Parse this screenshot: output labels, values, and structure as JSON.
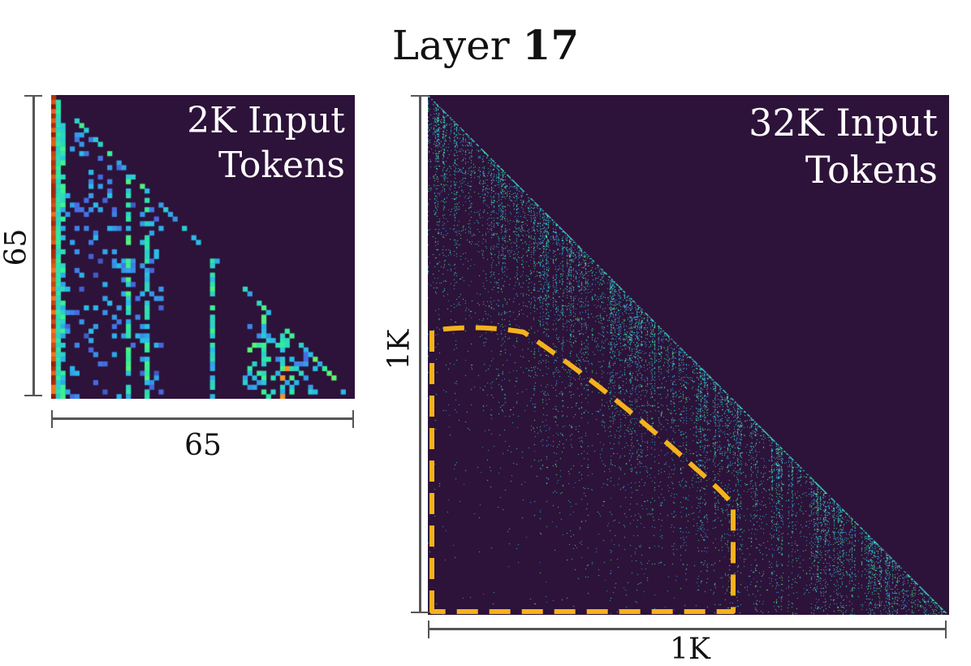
{
  "title": {
    "prefix": "Layer ",
    "number": "17"
  },
  "chart_data": [
    {
      "type": "heatmap",
      "label_line1": "2K Input",
      "label_line2": "Tokens",
      "x_label": "65",
      "y_label": "65",
      "size": 65,
      "mask": "lower-triangular",
      "colormap": "turbo",
      "background_color": "#2d1239",
      "features": {
        "strong_first_column": true,
        "bright_columns": [
          2,
          16,
          20,
          34,
          45,
          49
        ],
        "hot_cells": [
          [
            64,
            49
          ],
          [
            60,
            49
          ],
          [
            58,
            50
          ]
        ]
      }
    },
    {
      "type": "heatmap",
      "label_line1": "32K Input",
      "label_line2": "Tokens",
      "x_label": "1K",
      "y_label": "1K",
      "size": 1000,
      "mask": "lower-triangular",
      "colormap": "turbo",
      "background_color": "#2d1239",
      "features": {
        "dense_near_diagonal": true,
        "sparse_lower_left_region_highlighted": true,
        "highlight_color": "#f5b21b"
      }
    }
  ]
}
